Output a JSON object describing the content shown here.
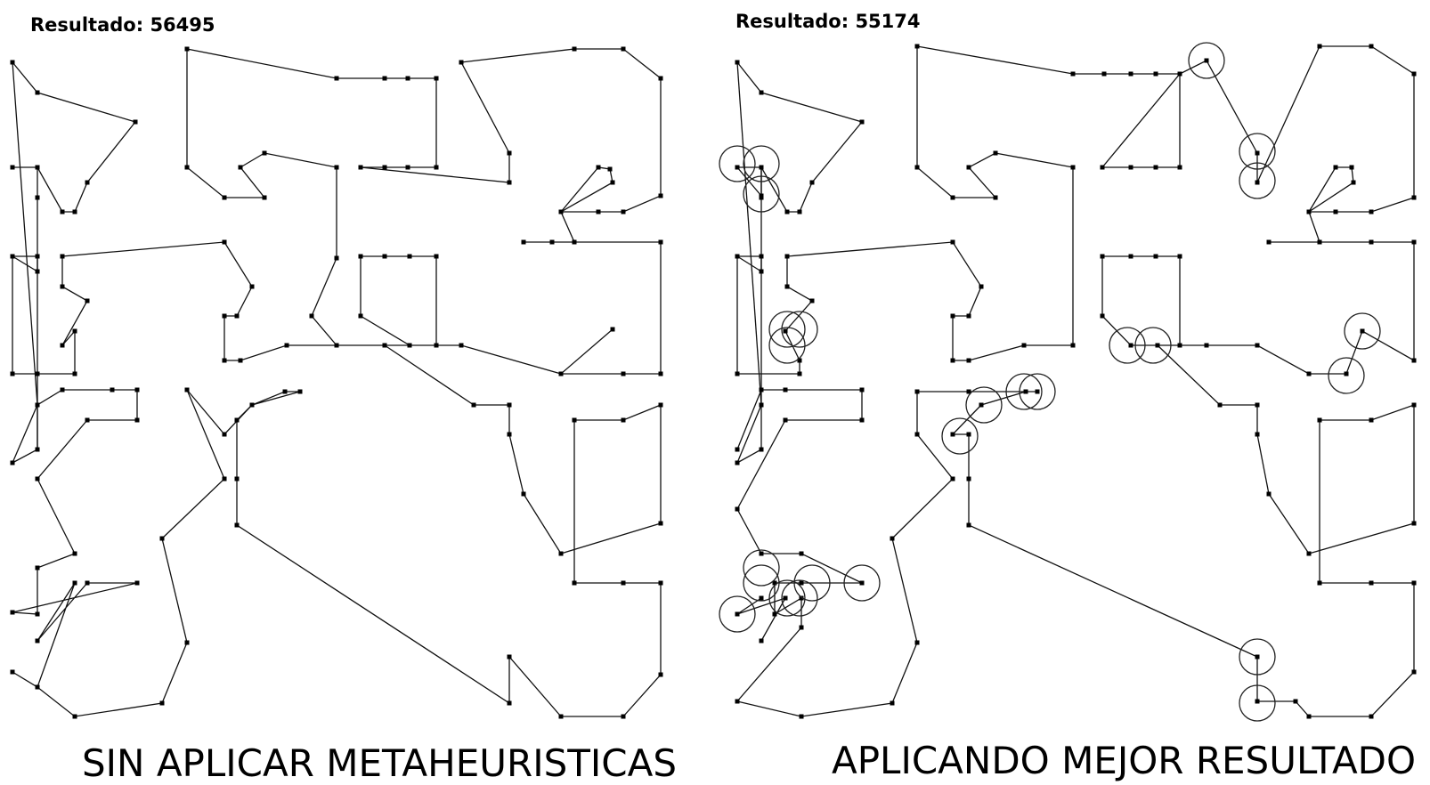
{
  "left": {
    "result_label": "Resultado: 56495",
    "caption": "SIN APLICAR METAHEURISTICAS"
  },
  "right": {
    "result_label": "Resultado: 55174",
    "caption": "APLICANDO MEJOR RESULTADO"
  },
  "colors": {
    "line": "#111111",
    "node": "#000000",
    "background": "#ffffff"
  }
}
